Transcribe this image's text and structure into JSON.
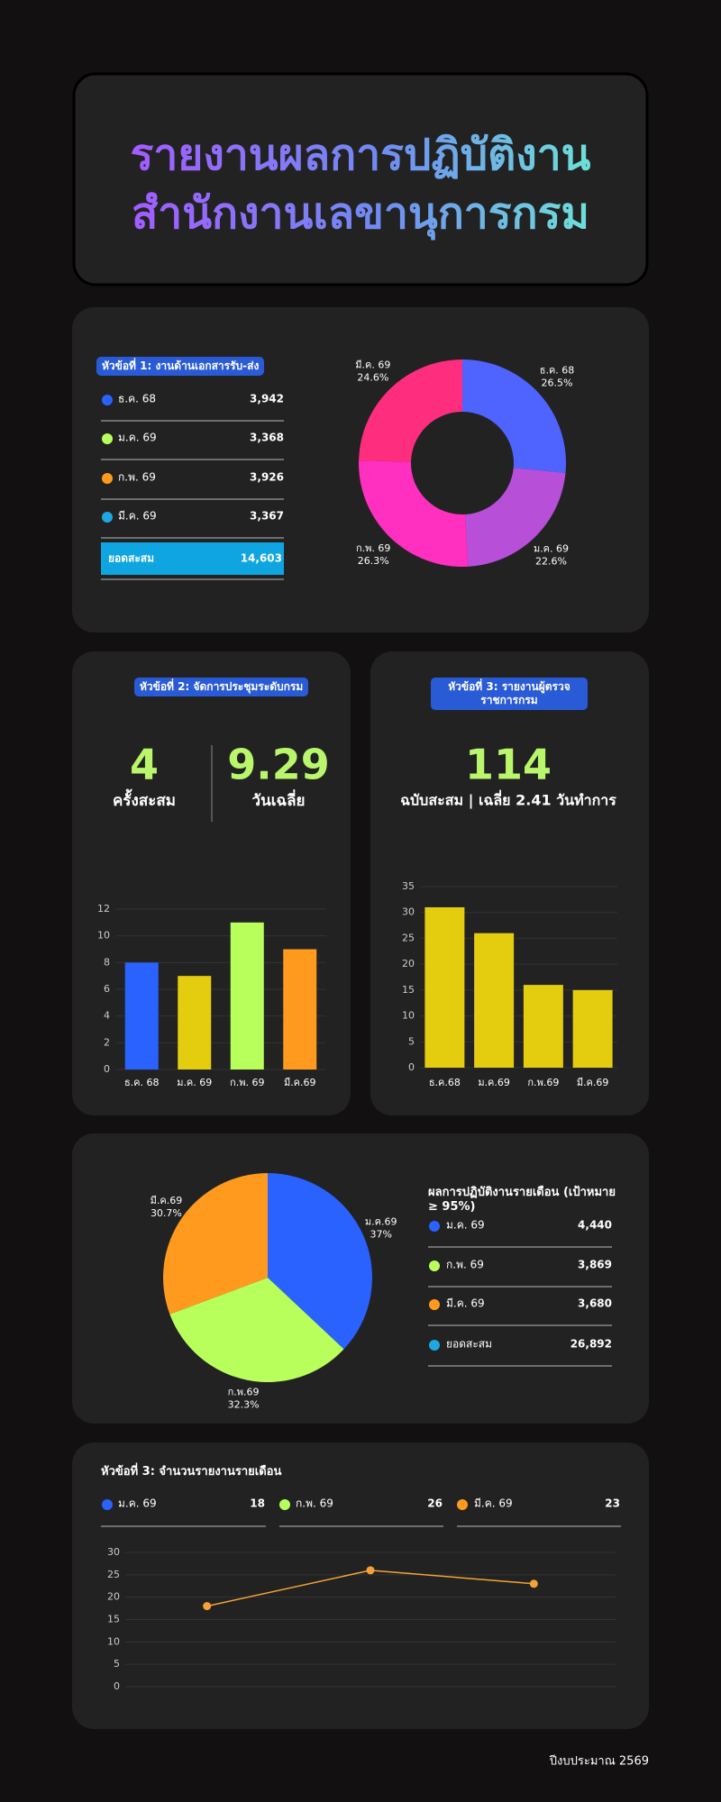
{
  "header": {
    "title_line1": "รายงานผลการปฏิบัติงาน",
    "title_line2": "สำนักงานเลขานุการกรม"
  },
  "section1": {
    "tag": "หัวข้อที่ 1: งานด้านเอกสารรับ-ส่ง",
    "rows": [
      {
        "label": "ธ.ค. 68",
        "value": "3,942",
        "color": "#2962ff"
      },
      {
        "label": "ม.ค. 69",
        "value": "3,368",
        "color": "#b8ff5c"
      },
      {
        "label": "ก.พ. 69",
        "value": "3,926",
        "color": "#ff9a1f"
      },
      {
        "label": "มี.ค. 69",
        "value": "3,367",
        "color": "#1ea7e1"
      }
    ],
    "total": {
      "label": "ยอดสะสม",
      "value": "14,603"
    }
  },
  "section2": {
    "tag": "หัวข้อที่ 2: จัดการประชุมระดับกรม",
    "stat1": {
      "value": "4",
      "label": "ครั้งสะสม"
    },
    "stat2": {
      "value": "9.29",
      "label": "วันเฉลี่ย"
    }
  },
  "section3": {
    "tag": "หัวข้อที่ 3: รายงานผู้ตรวจราชการกรม",
    "stat": {
      "value": "114",
      "label": "ฉบับสะสม | เฉลี่ย 2.41 วันทำการ"
    }
  },
  "section4": {
    "title": "ผลการปฏิบัติงานรายเดือน (เป้าหมาย ≥ 95%)",
    "rows": [
      {
        "label": "ม.ค. 69",
        "value": "4,440",
        "color": "#2962ff"
      },
      {
        "label": "ก.พ. 69",
        "value": "3,869",
        "color": "#b8ff5c"
      },
      {
        "label": "มี.ค. 69",
        "value": "3,680",
        "color": "#ff9a1f"
      },
      {
        "label": "ยอดสะสม",
        "value": "26,892",
        "color": "#1ea7e1"
      }
    ]
  },
  "section5": {
    "title": "หัวข้อที่ 3: จำนวนรายงานรายเดือน",
    "colors": [
      "#2962ff",
      "#b8ff5c",
      "#ff9a1f"
    ]
  },
  "footer": "ปีงบประมาณ 2569",
  "chart_data": [
    {
      "type": "donut",
      "categories": [
        "ธ.ค. 68",
        "ม.ค. 69",
        "ก.พ. 69",
        "มี.ค. 69"
      ],
      "values": [
        26.5,
        22.6,
        26.3,
        24.6
      ],
      "value_labels": [
        "26.5%",
        "22.6%",
        "26.3%",
        "24.6%"
      ],
      "colors": [
        "#4f63ff",
        "#b84fd8",
        "#ff2fc0",
        "#ff2d7e"
      ]
    },
    {
      "type": "bar",
      "categories": [
        "ธ.ค. 68",
        "ม.ค. 69",
        "ก.พ. 69",
        "มี.ค.69"
      ],
      "values": [
        8,
        7,
        11,
        9
      ],
      "colors": [
        "#2962ff",
        "#e3cd0e",
        "#b8ff5c",
        "#ff9a1f"
      ],
      "ylim": [
        0,
        12
      ],
      "yticks": [
        0,
        2,
        4,
        6,
        8,
        10,
        12
      ],
      "grid": true
    },
    {
      "type": "bar",
      "categories": [
        "ธ.ค.68",
        "ม.ค.69",
        "ก.พ.69",
        "มี.ค.69"
      ],
      "values": [
        31,
        26,
        16,
        15
      ],
      "color": "#e3cd0e",
      "ylim": [
        0,
        35
      ],
      "yticks": [
        0,
        5,
        10,
        15,
        20,
        25,
        30,
        35
      ],
      "grid": true
    },
    {
      "type": "pie",
      "categories": [
        "ม.ค.69",
        "ก.พ.69",
        "มี.ค.69"
      ],
      "values": [
        37,
        32.3,
        30.7
      ],
      "value_labels": [
        "37%",
        "32.3%",
        "30.7%"
      ],
      "colors": [
        "#2962ff",
        "#b8ff5c",
        "#ff9a1f"
      ]
    },
    {
      "type": "line",
      "categories": [
        "ม.ค. 69",
        "ก.พ. 69",
        "มี.ค. 69"
      ],
      "values": [
        18,
        26,
        23
      ],
      "color": "#f4a13a",
      "ylim": [
        0,
        30
      ],
      "yticks": [
        0,
        5,
        10,
        15,
        20,
        25,
        30
      ],
      "grid": true
    }
  ]
}
